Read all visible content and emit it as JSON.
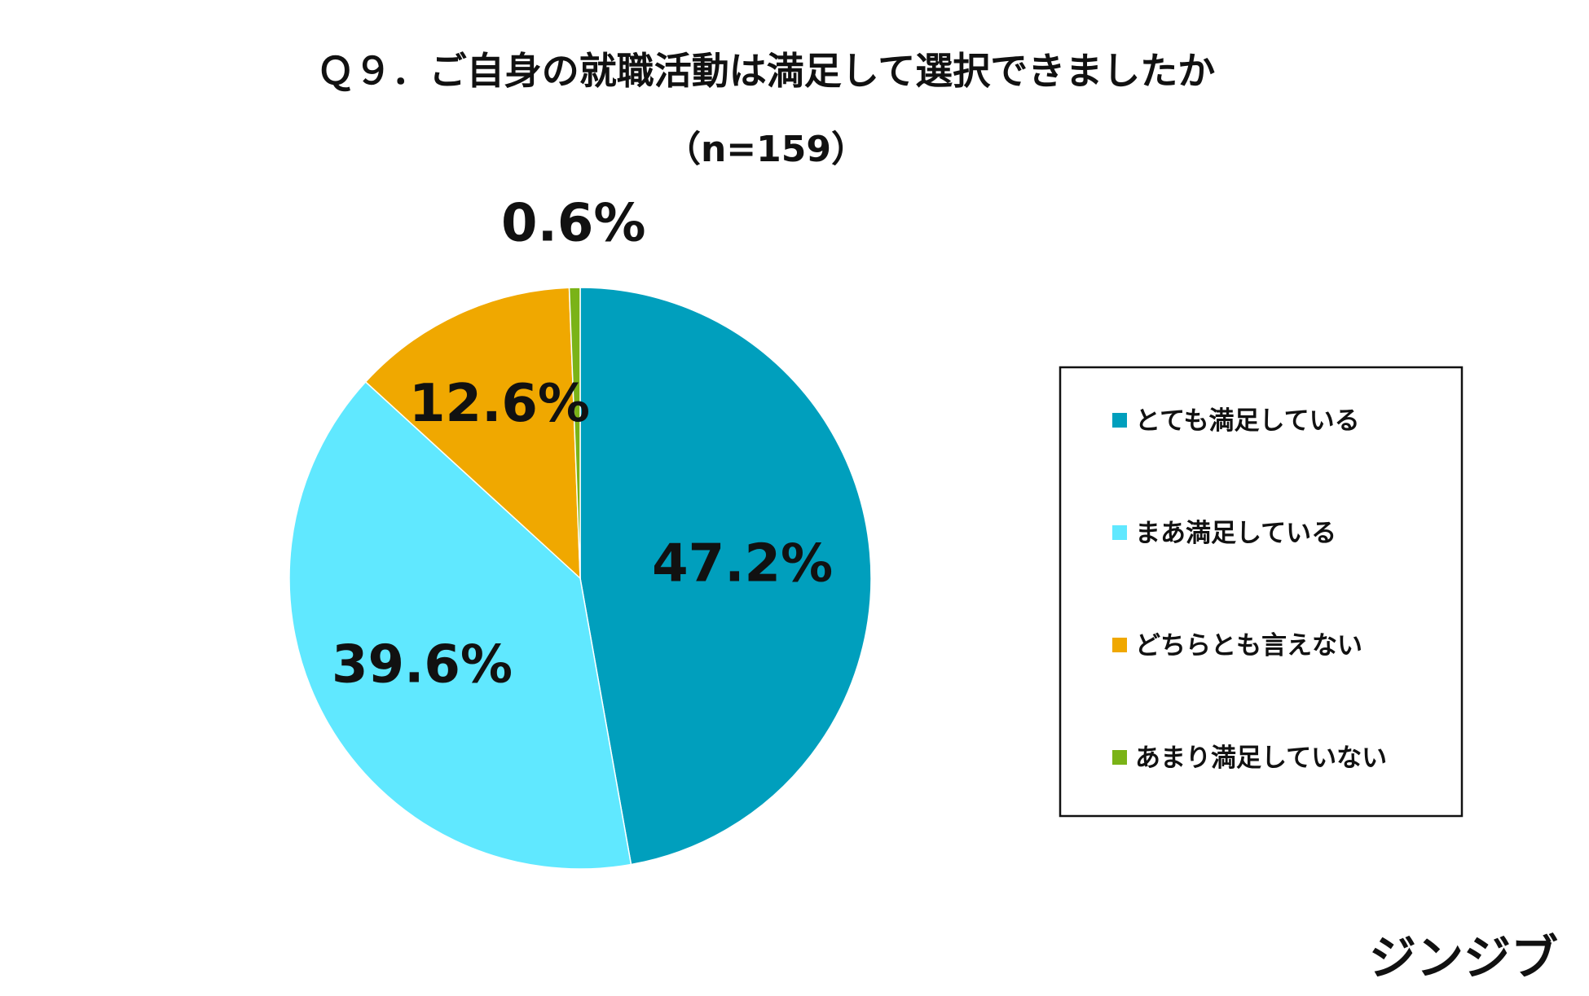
{
  "chart_data": {
    "type": "pie",
    "title": "Ｑ９．ご自身の就職活動は満足して選択できましたか",
    "subtitle": "（n=159）",
    "categories": [
      "とても満足している",
      "まあ満足している",
      "どちらとも言えない",
      "あまり満足していない"
    ],
    "values": [
      47.2,
      39.6,
      12.6,
      0.6
    ],
    "labels": [
      "47.2%",
      "39.6%",
      "12.6%",
      "0.6%"
    ],
    "colors": [
      "#009FBD",
      "#60E8FF",
      "#F0A800",
      "#7AB317"
    ],
    "start_angle_deg": 0,
    "direction": "clockwise",
    "legend_position": "right"
  },
  "brand": {
    "logo_text": "ジンジブ"
  }
}
